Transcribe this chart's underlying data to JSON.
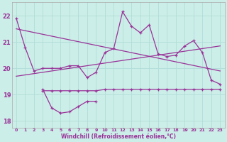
{
  "xlabel": "Windchill (Refroidissement éolien,°C)",
  "background_color": "#cceee8",
  "line_color": "#993399",
  "grid_color": "#b0ddd8",
  "hours": [
    0,
    1,
    2,
    3,
    4,
    5,
    6,
    7,
    8,
    9,
    10,
    11,
    12,
    13,
    14,
    15,
    16,
    17,
    18,
    19,
    20,
    21,
    22,
    23
  ],
  "series_main": [
    21.9,
    20.8,
    19.9,
    20.0,
    20.0,
    20.0,
    20.1,
    20.1,
    19.65,
    19.85,
    20.6,
    20.75,
    22.15,
    21.6,
    21.35,
    21.65,
    20.55,
    20.45,
    20.5,
    20.85,
    21.05,
    20.6,
    19.55,
    19.4
  ],
  "series_u": [
    null,
    null,
    null,
    19.2,
    18.5,
    18.3,
    18.35,
    18.55,
    18.75,
    18.75,
    null,
    null,
    null,
    null,
    null,
    null,
    null,
    null,
    null,
    null,
    null,
    null,
    null,
    null
  ],
  "series_flat": [
    null,
    null,
    null,
    19.15,
    19.15,
    19.15,
    19.15,
    19.15,
    19.15,
    19.15,
    19.2,
    19.2,
    19.2,
    19.2,
    19.2,
    19.2,
    19.2,
    19.2,
    19.2,
    19.2,
    19.2,
    19.2,
    19.2,
    19.2
  ],
  "trend1_x": [
    0,
    23
  ],
  "trend1_y": [
    21.5,
    19.9
  ],
  "trend2_x": [
    0,
    23
  ],
  "trend2_y": [
    19.7,
    20.85
  ],
  "ylim": [
    17.75,
    22.5
  ],
  "yticks": [
    18,
    19,
    20,
    21,
    22
  ],
  "xticks": [
    0,
    1,
    2,
    3,
    4,
    5,
    6,
    7,
    8,
    9,
    10,
    11,
    12,
    13,
    14,
    15,
    16,
    17,
    18,
    19,
    20,
    21,
    22,
    23
  ]
}
